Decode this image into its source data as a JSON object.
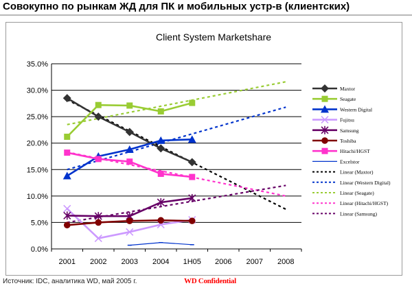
{
  "slide": {
    "title": "Совокупно по рынкам ЖД для ПК и мобильных устр-в (клиентских)",
    "source": "Источник: IDC, аналитика WD, май 2005 г.",
    "confidential": "WD Confidential"
  },
  "chart_data": {
    "type": "line",
    "title": "Client System Marketshare",
    "xlabel": "",
    "ylabel": "",
    "categories": [
      "2001",
      "2002",
      "2003",
      "2004",
      "1H05",
      "2006",
      "2007",
      "2008"
    ],
    "y_ticks": [
      "0.0%",
      "5.0%",
      "10.0%",
      "15.0%",
      "20.0%",
      "25.0%",
      "30.0%",
      "35.0%"
    ],
    "ylim": [
      0,
      35
    ],
    "grid": "horizontal",
    "legend_position": "right",
    "series": [
      {
        "name": "Maxtor",
        "color": "#333333",
        "marker": "diamond",
        "values": [
          28.5,
          25.0,
          22.1,
          19.0,
          16.4,
          null,
          null,
          null
        ]
      },
      {
        "name": "Seagate",
        "color": "#99cc33",
        "marker": "square",
        "values": [
          21.2,
          27.2,
          27.1,
          26.0,
          27.6,
          null,
          null,
          null
        ]
      },
      {
        "name": "Western Digital",
        "color": "#0033cc",
        "marker": "triangle",
        "values": [
          13.8,
          17.5,
          18.8,
          20.5,
          20.7,
          null,
          null,
          null
        ]
      },
      {
        "name": "Fujitsu",
        "color": "#cc99ff",
        "marker": "x",
        "values": [
          7.6,
          2.0,
          3.2,
          4.6,
          5.5,
          null,
          null,
          null
        ]
      },
      {
        "name": "Samsung",
        "color": "#660066",
        "marker": "star",
        "values": [
          6.3,
          6.2,
          6.2,
          8.8,
          9.6,
          null,
          null,
          null
        ]
      },
      {
        "name": "Toshiba",
        "color": "#800000",
        "marker": "circle",
        "values": [
          4.5,
          5.0,
          5.3,
          5.4,
          5.3,
          null,
          null,
          null
        ]
      },
      {
        "name": "Hitachi/HGST",
        "color": "#ff33cc",
        "marker": "square",
        "values": [
          18.2,
          17.0,
          16.5,
          14.2,
          13.6,
          null,
          null,
          null
        ]
      },
      {
        "name": "Excelstor",
        "color": "#0033cc",
        "marker": "dash",
        "values": [
          null,
          null,
          0.7,
          1.2,
          0.8,
          null,
          null,
          null
        ]
      }
    ],
    "trendlines": [
      {
        "name": "Linear (Maxtor)",
        "color": "#000000",
        "from": [
          0,
          28.2
        ],
        "to": [
          7,
          7.5
        ]
      },
      {
        "name": "Linear (Western Digital)",
        "color": "#0033cc",
        "from": [
          0,
          15.0
        ],
        "to": [
          7,
          26.8
        ]
      },
      {
        "name": "Linear (Seagate)",
        "color": "#99cc33",
        "from": [
          0,
          23.5
        ],
        "to": [
          7,
          31.6
        ]
      },
      {
        "name": "Linear (Hitachi/HGST)",
        "color": "#ff33cc",
        "from": [
          0,
          18.3
        ],
        "to": [
          7,
          10.0
        ]
      },
      {
        "name": "Linear (Samsung)",
        "color": "#660066",
        "from": [
          0,
          5.0
        ],
        "to": [
          7,
          12.0
        ]
      }
    ]
  }
}
